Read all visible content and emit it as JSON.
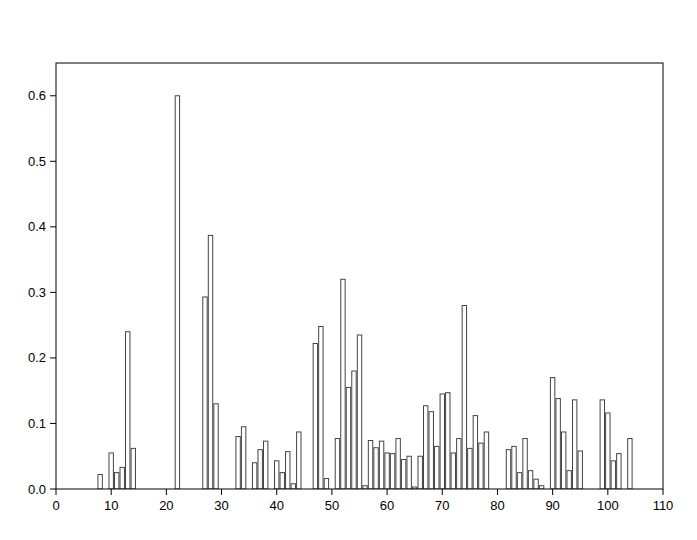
{
  "chart_data": {
    "type": "bar",
    "x": [
      8,
      10,
      11,
      12,
      13,
      14,
      22,
      27,
      28,
      29,
      33,
      34,
      36,
      37,
      38,
      40,
      41,
      42,
      43,
      44,
      47,
      48,
      49,
      51,
      52,
      53,
      54,
      55,
      56,
      57,
      58,
      59,
      60,
      61,
      62,
      63,
      64,
      65,
      66,
      67,
      68,
      69,
      70,
      71,
      72,
      73,
      74,
      75,
      76,
      77,
      78,
      82,
      83,
      84,
      85,
      86,
      87,
      88,
      90,
      91,
      92,
      93,
      94,
      95,
      99,
      100,
      101,
      102,
      104
    ],
    "values": [
      0.022,
      0.055,
      0.025,
      0.033,
      0.24,
      0.062,
      0.6,
      0.293,
      0.387,
      0.13,
      0.08,
      0.095,
      0.04,
      0.06,
      0.073,
      0.043,
      0.025,
      0.057,
      0.008,
      0.087,
      0.222,
      0.248,
      0.016,
      0.077,
      0.32,
      0.155,
      0.18,
      0.235,
      0.005,
      0.074,
      0.063,
      0.073,
      0.055,
      0.054,
      0.077,
      0.045,
      0.05,
      0.003,
      0.05,
      0.127,
      0.118,
      0.065,
      0.145,
      0.147,
      0.055,
      0.077,
      0.28,
      0.062,
      0.112,
      0.07,
      0.087,
      0.06,
      0.065,
      0.025,
      0.077,
      0.028,
      0.015,
      0.005,
      0.17,
      0.138,
      0.087,
      0.028,
      0.136,
      0.058,
      0.136,
      0.116,
      0.043,
      0.054,
      0.077
    ],
    "color": "#ffffff",
    "xlim": [
      0,
      110
    ],
    "xticks": [
      0,
      10,
      20,
      30,
      40,
      50,
      60,
      70,
      80,
      90,
      100,
      110
    ],
    "ylim": [
      0,
      0.65
    ],
    "yticks": [
      {
        "value": 0,
        "label": "0.0"
      },
      0.1,
      0.2,
      0.3,
      0.4,
      0.5,
      0.6
    ],
    "grid": false
  }
}
